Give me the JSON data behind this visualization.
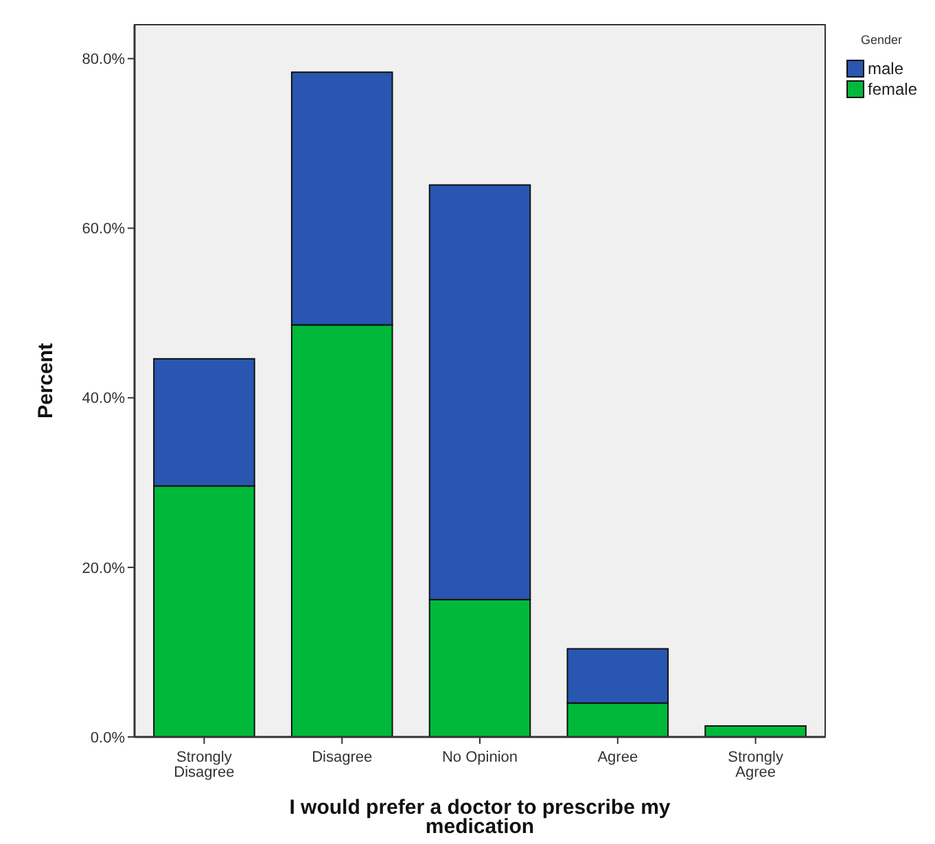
{
  "chart_data": {
    "type": "bar",
    "stacked": true,
    "xlabel": "I would prefer a doctor to prescribe my medication",
    "ylabel": "Percent",
    "legend_title": "Gender",
    "legend": "top right",
    "categories": [
      "Strongly Disagree",
      "Disagree",
      "No Opinion",
      "Agree",
      "Strongly Agree"
    ],
    "series": [
      {
        "name": "female",
        "color": "#00b93b",
        "values": [
          29.6,
          48.6,
          16.2,
          4.0,
          1.3
        ]
      },
      {
        "name": "male",
        "color": "#2856b0",
        "values": [
          15.0,
          29.8,
          48.9,
          6.4,
          0
        ]
      }
    ],
    "ylim": [
      0,
      84
    ],
    "yticks": [
      {
        "value": 0,
        "label": "0.0%"
      },
      {
        "value": 20,
        "label": "20.0%"
      },
      {
        "value": 40,
        "label": "40.0%"
      },
      {
        "value": 60,
        "label": "60.0%"
      },
      {
        "value": 80,
        "label": "80.0%"
      }
    ],
    "grid": false
  }
}
